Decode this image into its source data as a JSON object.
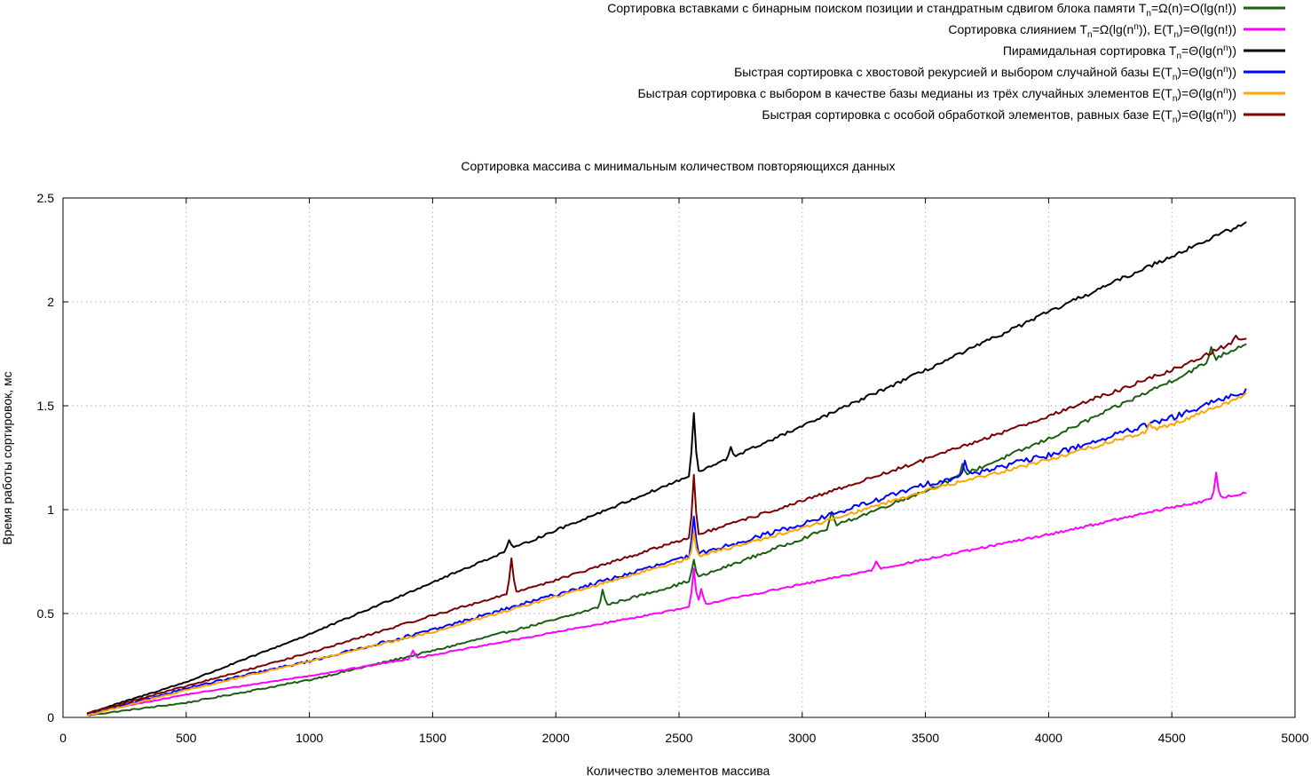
{
  "chart_data": {
    "type": "line",
    "title": "Сортировка массива с минимальным количеством повторяющихся данных",
    "xlabel": "Количество элементов массива",
    "ylabel": "Время работы сортировок, мс",
    "xlim": [
      0,
      5000
    ],
    "ylim": [
      0,
      2.5
    ],
    "x_ticks": [
      "0",
      "500",
      "1000",
      "1500",
      "2000",
      "2500",
      "3000",
      "3500",
      "4000",
      "4500",
      "5000"
    ],
    "y_ticks": [
      "0",
      "0.5",
      "1",
      "1.5",
      "2",
      "2.5"
    ],
    "grid": true,
    "legend_position": "top-right",
    "x_range": [
      100,
      4800
    ],
    "x_step": 10,
    "series": [
      {
        "name": "Сортировка вставками с бинарным поиском позиции и стандратным сдвигом блока памяти T_n=Ω(n)=O(lg(n!))",
        "legend": [
          {
            "t": "Сортировка вставками с бинарным поиском позиции и стандратным сдвигом блока памяти T"
          },
          {
            "t": "n",
            "sub": true
          },
          {
            "t": "=Ω(n)=O(lg(n!))"
          }
        ],
        "color": "#1b5e12",
        "points": [
          [
            100,
            0.01
          ],
          [
            500,
            0.07
          ],
          [
            1000,
            0.18
          ],
          [
            1500,
            0.32
          ],
          [
            2000,
            0.47
          ],
          [
            2500,
            0.64
          ],
          [
            3000,
            0.86
          ],
          [
            3500,
            1.09
          ],
          [
            4000,
            1.34
          ],
          [
            4500,
            1.62
          ],
          [
            4800,
            1.8
          ]
        ],
        "noise": 0.008,
        "spikes": [
          [
            2190,
            0.08
          ],
          [
            2560,
            0.09
          ],
          [
            3120,
            0.08
          ],
          [
            3650,
            0.05
          ],
          [
            4660,
            0.07
          ]
        ]
      },
      {
        "name": "Сортировка слиянием T_n=Ω(lg(n^n)), E(T_n)=Θ(lg(n!))",
        "legend": [
          {
            "t": "Сортировка слиянием T"
          },
          {
            "t": "n",
            "sub": true
          },
          {
            "t": "=Ω(lg(n"
          },
          {
            "t": "n",
            "sup": true
          },
          {
            "t": ")), E(T"
          },
          {
            "t": "n",
            "sub": true
          },
          {
            "t": ")=Θ(lg(n!))"
          }
        ],
        "color": "#ff00ff",
        "points": [
          [
            100,
            0.02
          ],
          [
            500,
            0.11
          ],
          [
            1000,
            0.2
          ],
          [
            1500,
            0.3
          ],
          [
            2000,
            0.41
          ],
          [
            2500,
            0.52
          ],
          [
            3000,
            0.64
          ],
          [
            3500,
            0.76
          ],
          [
            4000,
            0.88
          ],
          [
            4500,
            1.01
          ],
          [
            4800,
            1.08
          ]
        ],
        "noise": 0.005,
        "spikes": [
          [
            1420,
            0.04
          ],
          [
            2560,
            0.18
          ],
          [
            2590,
            0.08
          ],
          [
            3300,
            0.04
          ],
          [
            4680,
            0.12
          ]
        ]
      },
      {
        "name": "Пирамидальная сортировка T_n=Θ(lg(n^n))",
        "legend": [
          {
            "t": "Пирамидальная сортировка T"
          },
          {
            "t": "n",
            "sub": true
          },
          {
            "t": "=Θ(lg(n"
          },
          {
            "t": "n",
            "sup": true
          },
          {
            "t": "))"
          }
        ],
        "color": "#000000",
        "points": [
          [
            100,
            0.02
          ],
          [
            500,
            0.17
          ],
          [
            1000,
            0.4
          ],
          [
            1500,
            0.65
          ],
          [
            2000,
            0.9
          ],
          [
            2500,
            1.14
          ],
          [
            3000,
            1.4
          ],
          [
            3500,
            1.67
          ],
          [
            4000,
            1.95
          ],
          [
            4500,
            2.22
          ],
          [
            4800,
            2.38
          ]
        ],
        "noise": 0.008,
        "spikes": [
          [
            1810,
            0.05
          ],
          [
            2560,
            0.29
          ],
          [
            2710,
            0.05
          ]
        ]
      },
      {
        "name": "Быстрая сортировка с хвостовой рекурсией и выбором случайной базы E(T_n)=Θ(lg(n^n))",
        "legend": [
          {
            "t": "Быстрая сортировка с хвостовой рекурсией и выбором случайной базы E(T"
          },
          {
            "t": "n",
            "sub": true
          },
          {
            "t": ")=Θ(lg(n"
          },
          {
            "t": "n",
            "sup": true
          },
          {
            "t": "))"
          }
        ],
        "color": "#0000ff",
        "points": [
          [
            100,
            0.01
          ],
          [
            500,
            0.14
          ],
          [
            1000,
            0.27
          ],
          [
            1500,
            0.42
          ],
          [
            2000,
            0.59
          ],
          [
            2500,
            0.76
          ],
          [
            3000,
            0.93
          ],
          [
            3500,
            1.12
          ],
          [
            4000,
            1.26
          ],
          [
            4500,
            1.44
          ],
          [
            4800,
            1.57
          ]
        ],
        "noise": 0.012,
        "spikes": [
          [
            2560,
            0.18
          ],
          [
            3660,
            0.06
          ]
        ]
      },
      {
        "name": "Быстрая сортировка с выбором в качестве базы медианы из трёх случайных элементов E(T_n)=Θ(lg(n^n))",
        "legend": [
          {
            "t": "Быстрая сортировка с выбором в качестве базы медианы из трёх случайных элементов E(T"
          },
          {
            "t": "n",
            "sub": true
          },
          {
            "t": ")=Θ(lg(n"
          },
          {
            "t": "n",
            "sup": true
          },
          {
            "t": "))"
          }
        ],
        "color": "#ffa500",
        "points": [
          [
            100,
            0.01
          ],
          [
            500,
            0.13
          ],
          [
            1000,
            0.27
          ],
          [
            1500,
            0.41
          ],
          [
            2000,
            0.58
          ],
          [
            2500,
            0.75
          ],
          [
            3000,
            0.91
          ],
          [
            3500,
            1.09
          ],
          [
            4000,
            1.24
          ],
          [
            4500,
            1.41
          ],
          [
            4800,
            1.55
          ]
        ],
        "noise": 0.008,
        "spikes": [
          [
            2560,
            0.12
          ],
          [
            4410,
            0.03
          ]
        ]
      },
      {
        "name": "Быстрая сортировка с особой обработкой элементов, равных базе E(T_n)=Θ(lg(n^n))",
        "legend": [
          {
            "t": "Быстрая сортировка с особой обработкой элементов, равных базе E(T"
          },
          {
            "t": "n",
            "sub": true
          },
          {
            "t": ")=Θ(lg(n"
          },
          {
            "t": "n",
            "sup": true
          },
          {
            "t": "))"
          }
        ],
        "color": "#7b0000",
        "points": [
          [
            100,
            0.02
          ],
          [
            500,
            0.15
          ],
          [
            1000,
            0.31
          ],
          [
            1500,
            0.49
          ],
          [
            2000,
            0.66
          ],
          [
            2500,
            0.85
          ],
          [
            3000,
            1.04
          ],
          [
            3500,
            1.24
          ],
          [
            4000,
            1.45
          ],
          [
            4500,
            1.67
          ],
          [
            4800,
            1.83
          ]
        ],
        "noise": 0.008,
        "spikes": [
          [
            1820,
            0.17
          ],
          [
            2560,
            0.29
          ],
          [
            4760,
            0.03
          ]
        ]
      }
    ]
  }
}
